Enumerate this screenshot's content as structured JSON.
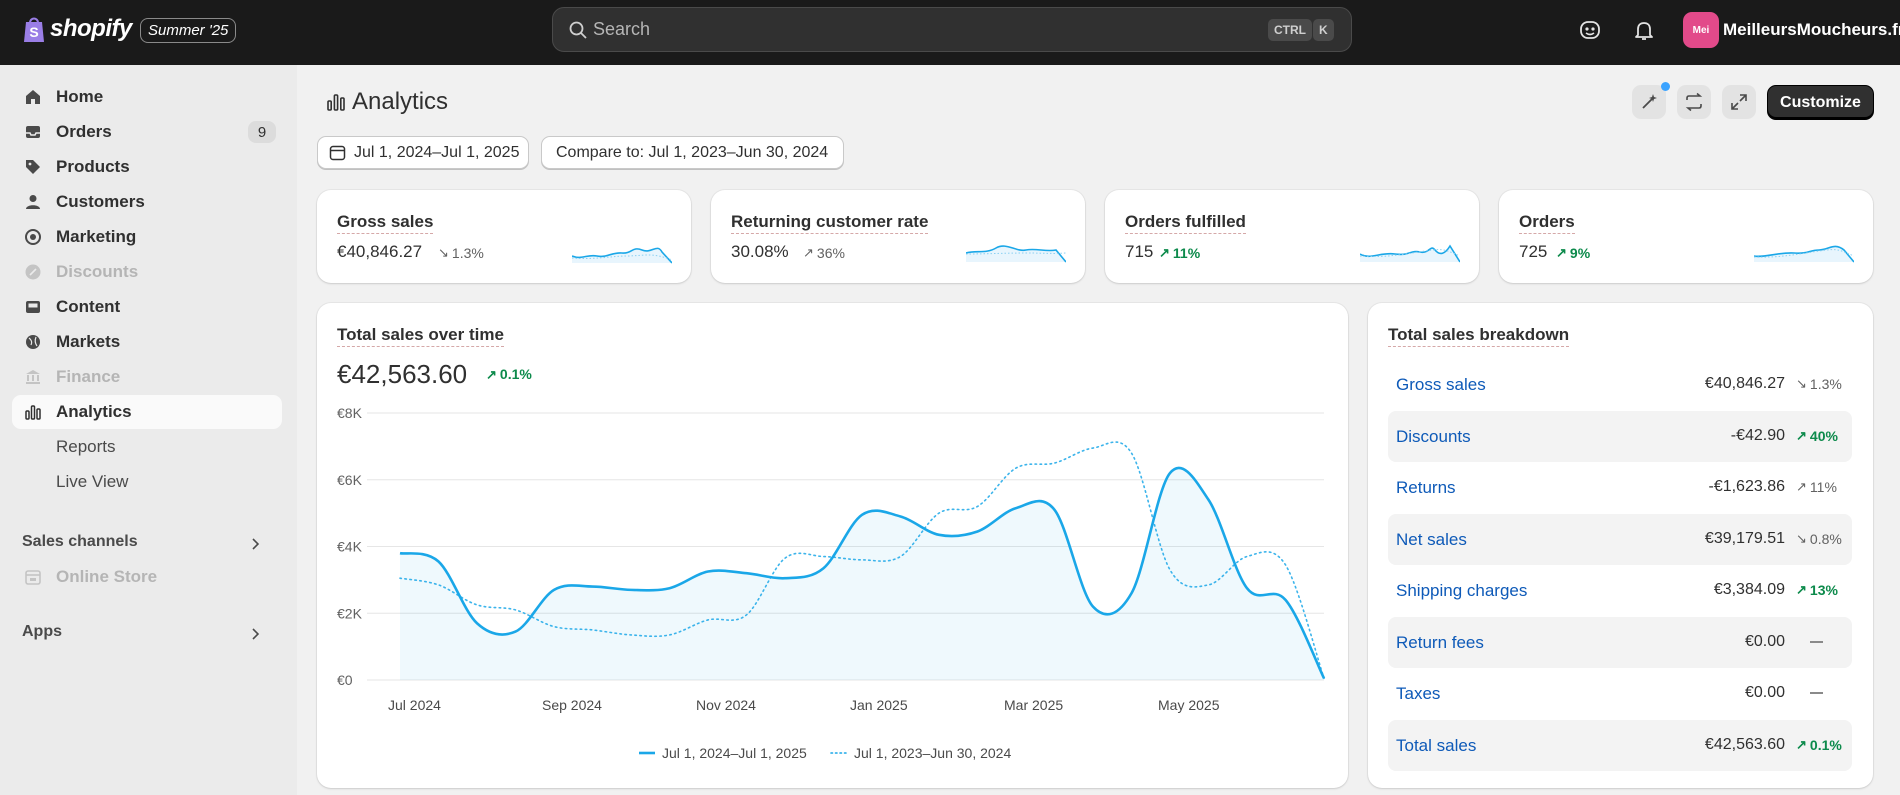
{
  "header": {
    "logo_text": "shopify",
    "edition_badge": "Summer '25",
    "search": {
      "placeholder": "Search",
      "shortcut_ctrl": "CTRL",
      "shortcut_key": "K"
    },
    "store": {
      "avatar_text": "Mei",
      "name": "MeilleursMoucheurs.fr"
    }
  },
  "sidebar": {
    "items": [
      {
        "label": "Home"
      },
      {
        "label": "Orders",
        "badge": "9"
      },
      {
        "label": "Products"
      },
      {
        "label": "Customers"
      },
      {
        "label": "Marketing"
      },
      {
        "label": "Discounts"
      },
      {
        "label": "Content"
      },
      {
        "label": "Markets"
      },
      {
        "label": "Finance"
      },
      {
        "label": "Analytics"
      },
      {
        "label": "Reports"
      },
      {
        "label": "Live View"
      }
    ],
    "sales_channels_label": "Sales channels",
    "online_store_label": "Online Store",
    "apps_label": "Apps"
  },
  "page": {
    "title": "Analytics",
    "customize_label": "Customize",
    "date_range": "Jul 1, 2024–Jul 1, 2025",
    "compare_range": "Compare to: Jul 1, 2023–Jun 30, 2024"
  },
  "metrics": [
    {
      "title": "Gross sales",
      "value": "€40,846.27",
      "change": "1.3%",
      "direction": "down"
    },
    {
      "title": "Returning customer rate",
      "value": "30.08%",
      "change": "36%",
      "direction": "up-neutral"
    },
    {
      "title": "Orders fulfilled",
      "value": "715",
      "change": "11%",
      "direction": "up"
    },
    {
      "title": "Orders",
      "value": "725",
      "change": "9%",
      "direction": "up"
    }
  ],
  "sales_chart": {
    "title": "Total sales over time",
    "total": "€42,563.60",
    "total_change": "0.1%",
    "accent_color": "#1aa7e8"
  },
  "chart_data": {
    "type": "line",
    "ylim": [
      0,
      8000
    ],
    "y_ticks": [
      "€0",
      "€2K",
      "€4K",
      "€6K",
      "€8K"
    ],
    "x_ticks": [
      "Jul 2024",
      "Sep 2024",
      "Nov 2024",
      "Jan 2025",
      "Mar 2025",
      "May 2025"
    ],
    "series": [
      {
        "name": "Jul 1, 2024–Jul 1, 2025",
        "style": "solid",
        "x": [
          0,
          0.5,
          1,
          1.5,
          2,
          2.5,
          3,
          3.5,
          4,
          4.5,
          5,
          5.5,
          6,
          6.5,
          7,
          7.5,
          8,
          8.5,
          9,
          9.5,
          10,
          10.5,
          11,
          11.5,
          12
        ],
        "values": [
          3800,
          3550,
          1700,
          1450,
          2700,
          2800,
          2700,
          2750,
          3250,
          3200,
          3050,
          3350,
          4950,
          4900,
          4350,
          4450,
          5150,
          5100,
          2200,
          2600,
          6200,
          5400,
          2750,
          2400,
          50
        ]
      },
      {
        "name": "Jul 1, 2023–Jun 30, 2024",
        "style": "dotted",
        "x": [
          0,
          0.5,
          1,
          1.5,
          2,
          2.5,
          3,
          3.5,
          4,
          4.5,
          5,
          5.5,
          6,
          6.5,
          7,
          7.5,
          8,
          8.5,
          9,
          9.5,
          10,
          10.5,
          11,
          11.5,
          12
        ],
        "values": [
          3050,
          2850,
          2250,
          2100,
          1600,
          1500,
          1350,
          1350,
          1800,
          1950,
          3650,
          3700,
          3600,
          3700,
          5000,
          5200,
          6350,
          6500,
          6950,
          6800,
          3300,
          2850,
          3700,
          3450,
          50
        ]
      }
    ]
  },
  "breakdown": {
    "title": "Total sales breakdown",
    "rows": [
      {
        "label": "Gross sales",
        "value": "€40,846.27",
        "change": "1.3%",
        "direction": "down"
      },
      {
        "label": "Discounts",
        "value": "-€42.90",
        "change": "40%",
        "direction": "up"
      },
      {
        "label": "Returns",
        "value": "-€1,623.86",
        "change": "11%",
        "direction": "up-neutral"
      },
      {
        "label": "Net sales",
        "value": "€39,179.51",
        "change": "0.8%",
        "direction": "down"
      },
      {
        "label": "Shipping charges",
        "value": "€3,384.09",
        "change": "13%",
        "direction": "up"
      },
      {
        "label": "Return fees",
        "value": "€0.00",
        "change": "",
        "direction": "none"
      },
      {
        "label": "Taxes",
        "value": "€0.00",
        "change": "",
        "direction": "none"
      },
      {
        "label": "Total sales",
        "value": "€42,563.60",
        "change": "0.1%",
        "direction": "up"
      }
    ]
  }
}
